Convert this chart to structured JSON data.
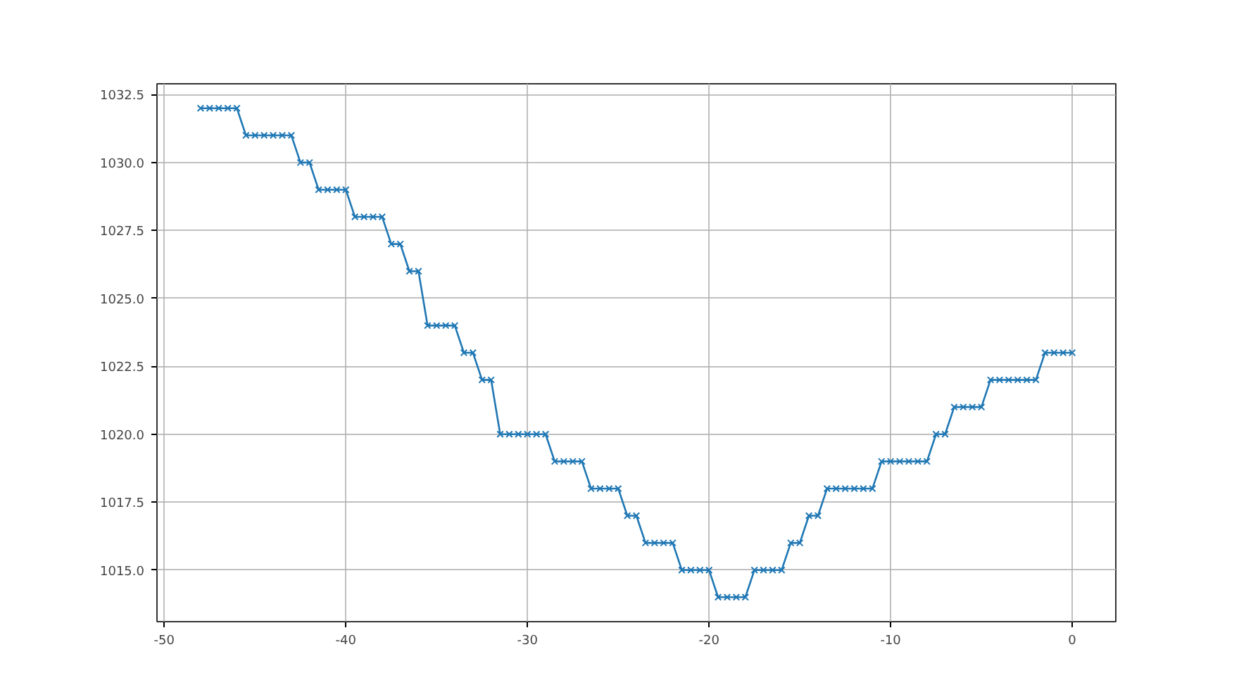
{
  "chart_data": {
    "type": "line",
    "marker": "x",
    "line_style": "solid",
    "grid": true,
    "x": [
      -48,
      -47.5,
      -47,
      -46.5,
      -46,
      -45.5,
      -45,
      -44.5,
      -44,
      -43.5,
      -43,
      -42.5,
      -42,
      -41.5,
      -41,
      -40.5,
      -40,
      -39.5,
      -39,
      -38.5,
      -38,
      -37.5,
      -37,
      -36.5,
      -36,
      -35.5,
      -35,
      -34.5,
      -34,
      -33.5,
      -33,
      -32.5,
      -32,
      -31.5,
      -31,
      -30.5,
      -30,
      -29.5,
      -29,
      -28.5,
      -28,
      -27.5,
      -27,
      -26.5,
      -26,
      -25.5,
      -25,
      -24.5,
      -24,
      -23.5,
      -23,
      -22.5,
      -22,
      -21.5,
      -21,
      -20.5,
      -20,
      -19.5,
      -19,
      -18.5,
      -18,
      -17.5,
      -17,
      -16.5,
      -16,
      -15.5,
      -15,
      -14.5,
      -14,
      -13.5,
      -13,
      -12.5,
      -12,
      -11.5,
      -11,
      -10.5,
      -10,
      -9.5,
      -9,
      -8.5,
      -8,
      -7.5,
      -7,
      -6.5,
      -6,
      -5.5,
      -5,
      -4.5,
      -4,
      -3.5,
      -3,
      -2.5,
      -2,
      -1.5,
      -1,
      -0.5,
      0
    ],
    "series": [
      {
        "color": "#1f77b4",
        "values": [
          1032,
          1032,
          1032,
          1032,
          1032,
          1031,
          1031,
          1031,
          1031,
          1031,
          1031,
          1030,
          1030,
          1029,
          1029,
          1029,
          1029,
          1028,
          1028,
          1028,
          1028,
          1027,
          1027,
          1026,
          1026,
          1024,
          1024,
          1024,
          1024,
          1023,
          1023,
          1022,
          1022,
          1020,
          1020,
          1020,
          1020,
          1020,
          1020,
          1019,
          1019,
          1019,
          1019,
          1018,
          1018,
          1018,
          1018,
          1017,
          1017,
          1016,
          1016,
          1016,
          1016,
          1015,
          1015,
          1015,
          1015,
          1014,
          1014,
          1014,
          1014,
          1015,
          1015,
          1015,
          1015,
          1016,
          1016,
          1017,
          1017,
          1018,
          1018,
          1018,
          1018,
          1018,
          1018,
          1019,
          1019,
          1019,
          1019,
          1019,
          1019,
          1020,
          1020,
          1021,
          1021,
          1021,
          1021,
          1022,
          1022,
          1022,
          1022,
          1022,
          1022,
          1023,
          1023,
          1023,
          1023
        ]
      }
    ],
    "xlim": [
      -50.4,
      2.4
    ],
    "ylim": [
      1013.1,
      1032.9
    ],
    "xticks": [
      -50,
      -40,
      -30,
      -20,
      -10,
      0
    ],
    "yticks": [
      {
        "value": 1015,
        "label": "1015.0"
      },
      {
        "value": 1017.5,
        "label": "1017.5"
      },
      {
        "value": 1020,
        "label": "1020.0"
      },
      {
        "value": 1022.5,
        "label": "1022.5"
      },
      {
        "value": 1025,
        "label": "1025.0"
      },
      {
        "value": 1027.5,
        "label": "1027.5"
      },
      {
        "value": 1030,
        "label": "1030.0"
      },
      {
        "value": 1032.5,
        "label": "1032.5"
      }
    ]
  }
}
